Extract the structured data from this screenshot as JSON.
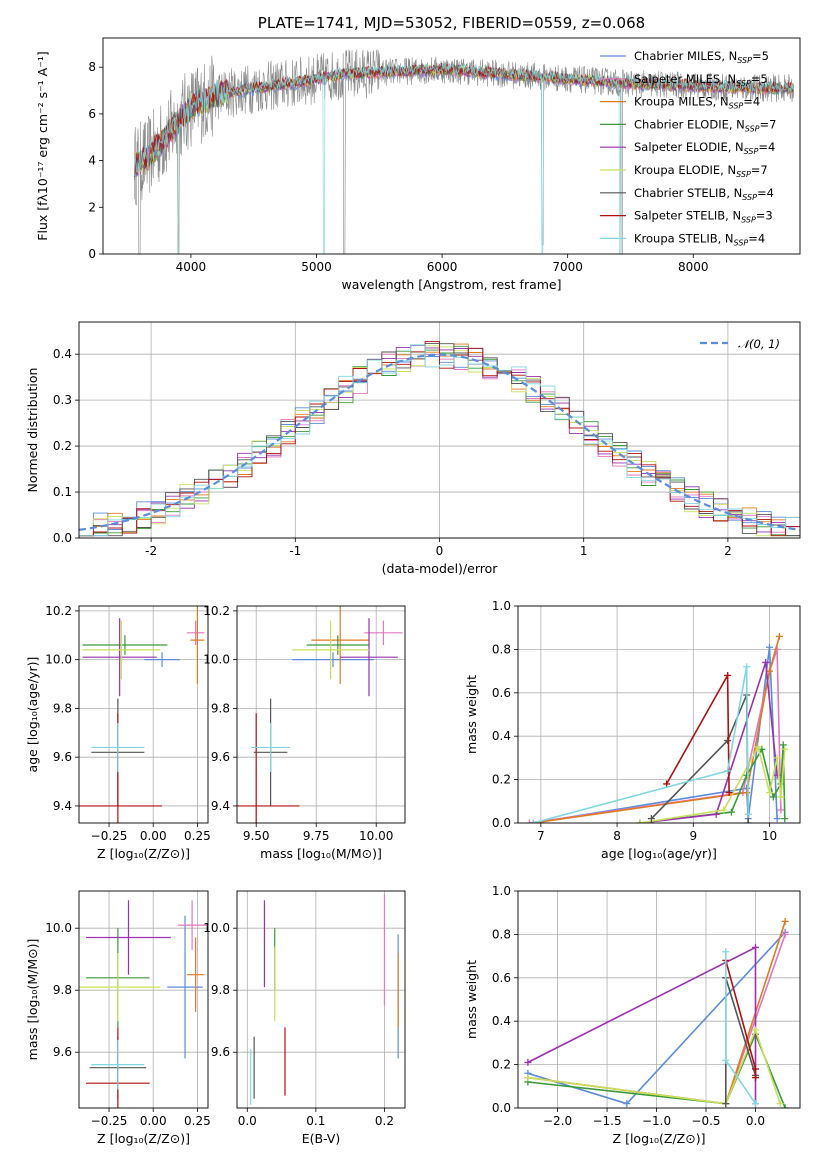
{
  "colors": {
    "Chabrier MILES": "#5b8dd9",
    "Salpeter MILES": "#e377c2",
    "Kroupa MILES": "#e07a1f",
    "Chabrier ELODIE": "#3a9a3a",
    "Salpeter ELODIE": "#9b30b0",
    "Kroupa ELODIE": "#c8e05a",
    "Chabrier STELIB": "#555555",
    "Salpeter STELIB": "#b01010",
    "Kroupa STELIB": "#7fd7e0",
    "data": "#888888",
    "gauss": "#5b8dd9"
  },
  "chart_data": [
    {
      "id": "spectrum",
      "type": "line",
      "title": "PLATE=1741, MJD=53052, FIBERID=0559, z=0.068",
      "xlabel": "wavelength [Angstrom, rest frame]",
      "ylabel": "Flux [fλ10⁻¹⁷ erg cm⁻² s⁻¹ A⁻¹]",
      "xlim": [
        3300,
        8850
      ],
      "ylim": [
        0,
        9.25
      ],
      "xticks": [
        4000,
        5000,
        6000,
        7000,
        8000
      ],
      "yticks": [
        0,
        2,
        4,
        6,
        8
      ],
      "legend_position": "upper right",
      "legend": [
        {
          "name": "Chabrier MILES",
          "label": "Chabrier MILES, N",
          "sub": "SSP",
          "tail": "=5"
        },
        {
          "name": "Salpeter MILES",
          "label": "Salpeter MILES, N",
          "sub": "SSP",
          "tail": "=5"
        },
        {
          "name": "Kroupa MILES",
          "label": "Kroupa MILES, N",
          "sub": "SSP",
          "tail": "=4"
        },
        {
          "name": "Chabrier ELODIE",
          "label": "Chabrier ELODIE, N",
          "sub": "SSP",
          "tail": "=7"
        },
        {
          "name": "Salpeter ELODIE",
          "label": "Salpeter ELODIE, N",
          "sub": "SSP",
          "tail": "=4"
        },
        {
          "name": "Kroupa ELODIE",
          "label": "Kroupa ELODIE, N",
          "sub": "SSP",
          "tail": "=7"
        },
        {
          "name": "Chabrier STELIB",
          "label": "Chabrier STELIB, N",
          "sub": "SSP",
          "tail": "=4"
        },
        {
          "name": "Salpeter STELIB",
          "label": "Salpeter STELIB, N",
          "sub": "SSP",
          "tail": "=3"
        },
        {
          "name": "Kroupa STELIB",
          "label": "Kroupa STELIB, N",
          "sub": "SSP",
          "tail": "=4"
        }
      ],
      "continuum_knots": {
        "x": [
          3550,
          3650,
          3800,
          3900,
          4000,
          4200,
          4500,
          4800,
          5000,
          5200,
          5600,
          6000,
          6500,
          7000,
          7500,
          8000,
          8500,
          8800
        ],
        "y": [
          3.8,
          4.1,
          5.0,
          5.7,
          6.3,
          6.8,
          7.1,
          7.3,
          7.5,
          7.7,
          7.8,
          7.9,
          7.7,
          7.5,
          7.3,
          7.2,
          7.1,
          7.1
        ]
      },
      "model_dips": [
        {
          "x": 3900,
          "y": 0.0
        },
        {
          "x": 5060,
          "y": 0.0
        },
        {
          "x": 6800,
          "y": 0.0
        },
        {
          "x": 7420,
          "y": 0.0
        }
      ],
      "data_dips": [
        {
          "x": 3590,
          "y": 0.0
        },
        {
          "x": 3900,
          "y": 0.2
        },
        {
          "x": 5220,
          "y": 0.0
        },
        {
          "x": 6800,
          "y": 0.4
        },
        {
          "x": 7430,
          "y": 0.0
        }
      ]
    },
    {
      "id": "residuals",
      "type": "step",
      "xlabel": "(data-model)/error",
      "ylabel": "Normed distribution",
      "xlim": [
        -2.5,
        2.5
      ],
      "ylim": [
        0,
        0.47
      ],
      "xticks": [
        -2,
        -1,
        0,
        1,
        2
      ],
      "yticks": [
        0.0,
        0.1,
        0.2,
        0.3,
        0.4
      ],
      "grid": true,
      "legend_position": "upper right",
      "gauss_label": "𝒩(0, 1)",
      "bin_width": 0.1
    },
    {
      "id": "age-vs-Z",
      "type": "errorbar",
      "xlabel": "Z [log₁₀(Z/Z⊙)]",
      "ylabel": "age  [log₁₀(age/yr)]",
      "xlim": [
        -0.42,
        0.31
      ],
      "ylim": [
        9.33,
        10.22
      ],
      "xticks": [
        -0.25,
        0.0,
        0.25
      ],
      "xticklabels": [
        "−0.25",
        "0.00",
        "0.25"
      ],
      "yticks": [
        9.4,
        9.6,
        9.8,
        10.0,
        10.2
      ],
      "grid": true,
      "points": [
        {
          "name": "Chabrier MILES",
          "x": 0.05,
          "xerr": 0.1,
          "y": 10.0,
          "yerr": 0.03
        },
        {
          "name": "Salpeter MILES",
          "x": 0.24,
          "xerr": 0.05,
          "y": 10.11,
          "yerr": 0.05
        },
        {
          "name": "Kroupa MILES",
          "x": 0.25,
          "xerr": 0.04,
          "y": 10.08,
          "yerr": 0.18
        },
        {
          "name": "Chabrier ELODIE",
          "x": -0.16,
          "xerr": 0.24,
          "y": 10.06,
          "yerr": 0.04
        },
        {
          "name": "Salpeter ELODIE",
          "x": -0.19,
          "xerr": 0.21,
          "y": 10.01,
          "yerr": 0.16
        },
        {
          "name": "Kroupa ELODIE",
          "x": -0.18,
          "xerr": 0.22,
          "y": 10.04,
          "yerr": 0.12
        },
        {
          "name": "Chabrier STELIB",
          "x": -0.2,
          "xerr": 0.15,
          "y": 9.62,
          "yerr": 0.22
        },
        {
          "name": "Salpeter STELIB",
          "x": -0.2,
          "xerr": 0.25,
          "y": 9.4,
          "yerr": 0.38
        },
        {
          "name": "Kroupa STELIB",
          "x": -0.2,
          "xerr": 0.15,
          "y": 9.64,
          "yerr": 0.1
        }
      ]
    },
    {
      "id": "age-vs-mass",
      "type": "errorbar",
      "xlabel": "mass [log₁₀(M/M⊙)]",
      "ylabel": "",
      "xlim": [
        9.42,
        10.12
      ],
      "ylim": [
        9.33,
        10.22
      ],
      "xticks": [
        9.5,
        9.75,
        10.0
      ],
      "xticklabels": [
        "9.50",
        "9.75",
        "10.00"
      ],
      "yticks": [
        9.4,
        9.6,
        9.8,
        10.0,
        10.2
      ],
      "grid": true,
      "points": [
        {
          "name": "Chabrier MILES",
          "x": 9.82,
          "xerr": 0.17,
          "y": 10.0,
          "yerr": 0.03
        },
        {
          "name": "Salpeter MILES",
          "x": 10.03,
          "xerr": 0.08,
          "y": 10.11,
          "yerr": 0.05
        },
        {
          "name": "Kroupa MILES",
          "x": 9.85,
          "xerr": 0.12,
          "y": 10.08,
          "yerr": 0.18
        },
        {
          "name": "Chabrier ELODIE",
          "x": 9.84,
          "xerr": 0.13,
          "y": 10.06,
          "yerr": 0.04
        },
        {
          "name": "Salpeter ELODIE",
          "x": 9.97,
          "xerr": 0.12,
          "y": 10.01,
          "yerr": 0.16
        },
        {
          "name": "Kroupa ELODIE",
          "x": 9.81,
          "xerr": 0.16,
          "y": 10.04,
          "yerr": 0.12
        },
        {
          "name": "Chabrier STELIB",
          "x": 9.56,
          "xerr": 0.07,
          "y": 9.62,
          "yerr": 0.22
        },
        {
          "name": "Salpeter STELIB",
          "x": 9.5,
          "xerr": 0.18,
          "y": 9.4,
          "yerr": 0.38
        },
        {
          "name": "Kroupa STELIB",
          "x": 9.56,
          "xerr": 0.08,
          "y": 9.64,
          "yerr": 0.1
        }
      ]
    },
    {
      "id": "weight-vs-age",
      "type": "line",
      "xlabel": "age  [log₁₀(age/yr)]",
      "ylabel": "mass weight",
      "xlim": [
        6.7,
        10.4
      ],
      "ylim": [
        0,
        1.0
      ],
      "xticks": [
        7,
        8,
        9,
        10
      ],
      "yticks": [
        0.0,
        0.2,
        0.4,
        0.6,
        0.8,
        1.0
      ],
      "grid": true,
      "series": [
        {
          "name": "Chabrier MILES",
          "x": [
            6.9,
            9.7,
            9.72,
            10.0,
            10.1
          ],
          "y": [
            0.0,
            0.16,
            0.02,
            0.81,
            0.02
          ]
        },
        {
          "name": "Salpeter MILES",
          "x": [
            6.85,
            9.65,
            10.0,
            10.1,
            10.15
          ],
          "y": [
            0.0,
            0.14,
            0.7,
            0.8,
            0.06
          ]
        },
        {
          "name": "Kroupa MILES",
          "x": [
            6.9,
            9.7,
            10.0,
            10.13
          ],
          "y": [
            0.0,
            0.14,
            0.7,
            0.86
          ]
        },
        {
          "name": "Chabrier ELODIE",
          "x": [
            8.3,
            9.5,
            9.7,
            9.9,
            10.05,
            10.15,
            10.18,
            10.2
          ],
          "y": [
            0.0,
            0.05,
            0.22,
            0.34,
            0.12,
            0.18,
            0.36,
            0.02
          ]
        },
        {
          "name": "Salpeter ELODIE",
          "x": [
            8.3,
            9.3,
            9.95,
            10.1
          ],
          "y": [
            0.0,
            0.04,
            0.74,
            0.22
          ]
        },
        {
          "name": "Kroupa ELODIE",
          "x": [
            8.3,
            9.4,
            9.85,
            10.0,
            10.1,
            10.15,
            10.2
          ],
          "y": [
            0.0,
            0.06,
            0.35,
            0.14,
            0.3,
            0.12,
            0.34
          ]
        },
        {
          "name": "Chabrier STELIB",
          "x": [
            8.45,
            9.45,
            9.7,
            9.72
          ],
          "y": [
            0.02,
            0.38,
            0.59,
            0.0
          ]
        },
        {
          "name": "Salpeter STELIB",
          "x": [
            8.65,
            9.45,
            9.47
          ],
          "y": [
            0.18,
            0.68,
            0.14
          ]
        },
        {
          "name": "Kroupa STELIB",
          "x": [
            6.9,
            9.45,
            9.7,
            9.72
          ],
          "y": [
            0.0,
            0.24,
            0.72,
            0.04
          ]
        }
      ]
    },
    {
      "id": "mass-vs-Z",
      "type": "errorbar",
      "xlabel": "Z [log₁₀(Z/Z⊙)]",
      "ylabel": "mass [log₁₀(M/M⊙)]",
      "xlim": [
        -0.42,
        0.31
      ],
      "ylim": [
        9.42,
        10.12
      ],
      "xticks": [
        -0.25,
        0.0,
        0.25
      ],
      "xticklabels": [
        "−0.25",
        "0.00",
        "0.25"
      ],
      "yticks": [
        9.6,
        9.8,
        10.0
      ],
      "grid": true,
      "points": [
        {
          "name": "Chabrier MILES",
          "x": 0.18,
          "xerr": 0.1,
          "y": 9.81,
          "yerr": 0.23
        },
        {
          "name": "Salpeter MILES",
          "x": 0.22,
          "xerr": 0.08,
          "y": 10.01,
          "yerr": 0.08
        },
        {
          "name": "Kroupa MILES",
          "x": 0.24,
          "xerr": 0.05,
          "y": 9.85,
          "yerr": 0.12
        },
        {
          "name": "Chabrier ELODIE",
          "x": -0.2,
          "xerr": 0.18,
          "y": 9.84,
          "yerr": 0.16
        },
        {
          "name": "Salpeter ELODIE",
          "x": -0.14,
          "xerr": 0.24,
          "y": 9.97,
          "yerr": 0.12
        },
        {
          "name": "Kroupa ELODIE",
          "x": -0.2,
          "xerr": 0.24,
          "y": 9.81,
          "yerr": 0.11
        },
        {
          "name": "Chabrier STELIB",
          "x": -0.2,
          "xerr": 0.16,
          "y": 9.55,
          "yerr": 0.1
        },
        {
          "name": "Salpeter STELIB",
          "x": -0.2,
          "xerr": 0.18,
          "y": 9.5,
          "yerr": 0.18
        },
        {
          "name": "Kroupa STELIB",
          "x": -0.2,
          "xerr": 0.15,
          "y": 9.56,
          "yerr": 0.08
        }
      ]
    },
    {
      "id": "mass-vs-ebv",
      "type": "errorbar",
      "xlabel": "E(B-V)",
      "ylabel": "",
      "xlim": [
        -0.015,
        0.23
      ],
      "ylim": [
        9.42,
        10.12
      ],
      "xticks": [
        0.0,
        0.1,
        0.2
      ],
      "xticklabels": [
        "0.0",
        "0.1",
        "0.2"
      ],
      "yticks": [
        9.6,
        9.8,
        10.0
      ],
      "grid": true,
      "points": [
        {
          "name": "Chabrier MILES",
          "x": 0.22,
          "xerr": 0.0,
          "y": 9.78,
          "yerr": 0.2
        },
        {
          "name": "Salpeter MILES",
          "x": 0.2,
          "xerr": 0.0,
          "y": 9.93,
          "yerr": 0.18
        },
        {
          "name": "Kroupa MILES",
          "x": 0.22,
          "xerr": 0.0,
          "y": 9.8,
          "yerr": 0.12
        },
        {
          "name": "Chabrier ELODIE",
          "x": 0.04,
          "xerr": 0.0,
          "y": 9.9,
          "yerr": 0.1
        },
        {
          "name": "Salpeter ELODIE",
          "x": 0.025,
          "xerr": 0.0,
          "y": 9.95,
          "yerr": 0.14
        },
        {
          "name": "Kroupa ELODIE",
          "x": 0.04,
          "xerr": 0.0,
          "y": 9.82,
          "yerr": 0.12
        },
        {
          "name": "Chabrier STELIB",
          "x": 0.01,
          "xerr": 0.0,
          "y": 9.55,
          "yerr": 0.1
        },
        {
          "name": "Salpeter STELIB",
          "x": 0.055,
          "xerr": 0.0,
          "y": 9.57,
          "yerr": 0.11
        },
        {
          "name": "Kroupa STELIB",
          "x": 0.005,
          "xerr": 0.0,
          "y": 9.52,
          "yerr": 0.09
        }
      ]
    },
    {
      "id": "weight-vs-Z",
      "type": "line",
      "xlabel": "Z [log₁₀(Z/Z⊙)]",
      "ylabel": "mass weight",
      "xlim": [
        -2.4,
        0.45
      ],
      "ylim": [
        0,
        1.0
      ],
      "xticks": [
        -2.0,
        -1.5,
        -1.0,
        -0.5,
        0.0
      ],
      "xticklabels": [
        "−2.0",
        "−1.5",
        "−1.0",
        "−0.5",
        "0.0"
      ],
      "yticks": [
        0.0,
        0.2,
        0.4,
        0.6,
        0.8,
        1.0
      ],
      "grid": true,
      "series": [
        {
          "name": "Chabrier MILES",
          "x": [
            -2.3,
            -1.3,
            0.3
          ],
          "y": [
            0.16,
            0.02,
            0.81
          ]
        },
        {
          "name": "Salpeter MILES",
          "x": [
            -2.3,
            -0.3,
            0.3
          ],
          "y": [
            0.14,
            0.02,
            0.8
          ]
        },
        {
          "name": "Kroupa MILES",
          "x": [
            -2.3,
            -0.3,
            0.3
          ],
          "y": [
            0.14,
            0.02,
            0.86
          ]
        },
        {
          "name": "Chabrier ELODIE",
          "x": [
            -2.3,
            -0.3,
            0.0,
            0.3
          ],
          "y": [
            0.12,
            0.02,
            0.34,
            0.0
          ]
        },
        {
          "name": "Salpeter ELODIE",
          "x": [
            -2.3,
            0.0,
            0.0
          ],
          "y": [
            0.21,
            0.74,
            0.02
          ]
        },
        {
          "name": "Kroupa ELODIE",
          "x": [
            -2.3,
            -0.3,
            0.0,
            0.25
          ],
          "y": [
            0.14,
            0.02,
            0.36,
            0.02
          ]
        },
        {
          "name": "Chabrier STELIB",
          "x": [
            -0.3,
            -0.3,
            0.0
          ],
          "y": [
            0.02,
            0.6,
            0.15
          ]
        },
        {
          "name": "Salpeter STELIB",
          "x": [
            -0.3,
            0.0,
            0.0
          ],
          "y": [
            0.68,
            0.18,
            0.14
          ]
        },
        {
          "name": "Kroupa STELIB",
          "x": [
            -0.3,
            -0.3,
            0.0
          ],
          "y": [
            0.72,
            0.22,
            0.02
          ]
        }
      ]
    }
  ]
}
